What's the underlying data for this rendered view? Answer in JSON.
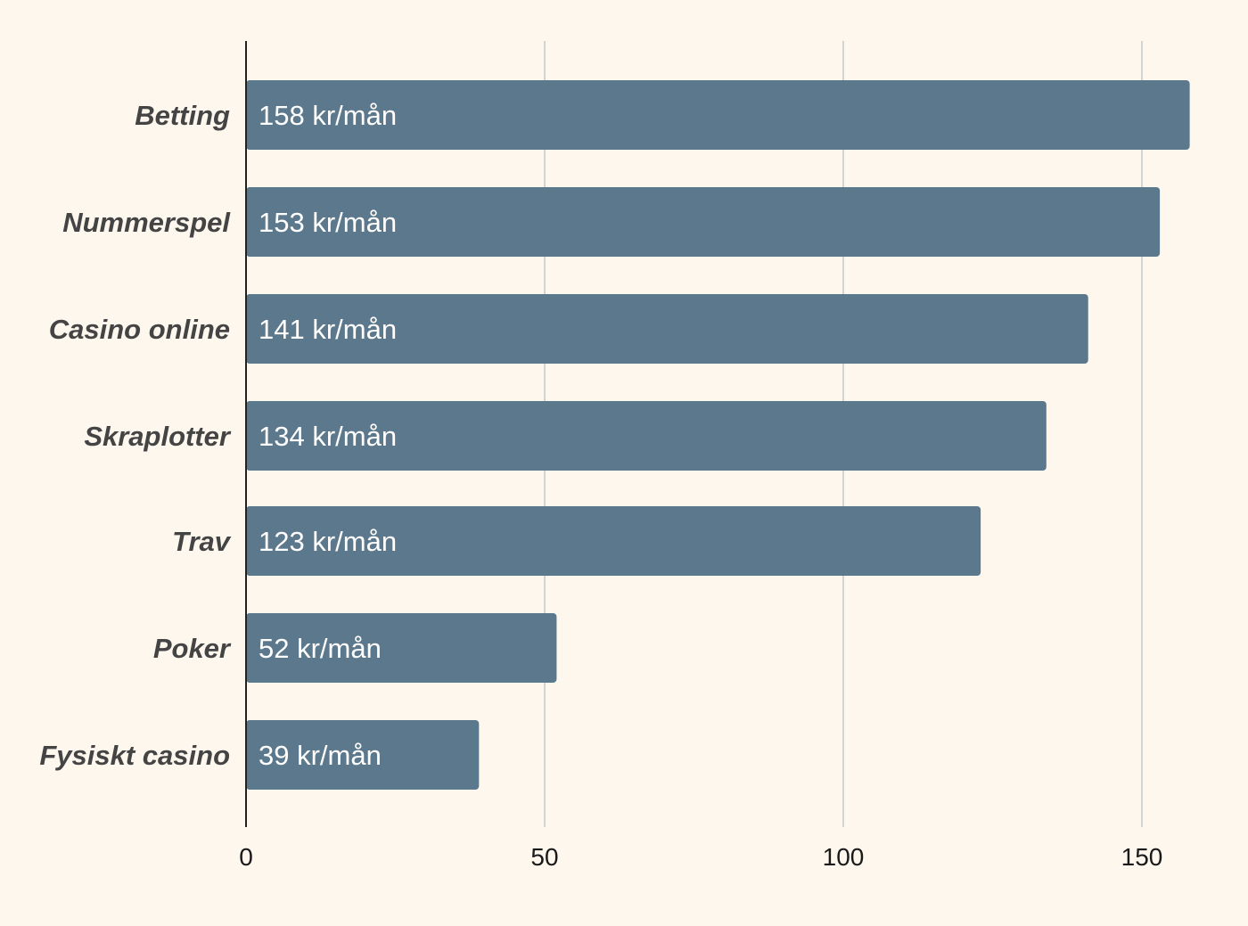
{
  "chart_data": {
    "type": "bar",
    "orientation": "horizontal",
    "title": "",
    "xlabel": "",
    "ylabel": "",
    "categories": [
      "Betting",
      "Nummerspel",
      "Casino online",
      "Skraplotter",
      "Trav",
      "Poker",
      "Fysiskt casino"
    ],
    "values": [
      158,
      153,
      141,
      134,
      123,
      52,
      39
    ],
    "data_labels": [
      "158 kr/mån",
      "153 kr/mån",
      "141 kr/mån",
      "134 kr/mån",
      "123 kr/mån",
      "52 kr/mån",
      "39 kr/mån"
    ],
    "xlim": [
      0,
      160
    ],
    "xticks": [
      0,
      50,
      100,
      150
    ],
    "xtick_labels": [
      "0",
      "50",
      "100",
      "150"
    ],
    "grid": "vertical",
    "legend": "none",
    "colors": {
      "background": "#fdf7ee",
      "bar": "#5c788c",
      "grid": "#d3d3d3",
      "axis": "#222222",
      "category_text": "#444444",
      "bar_text": "#ffffff",
      "tick_text": "#1a1a1a"
    }
  }
}
